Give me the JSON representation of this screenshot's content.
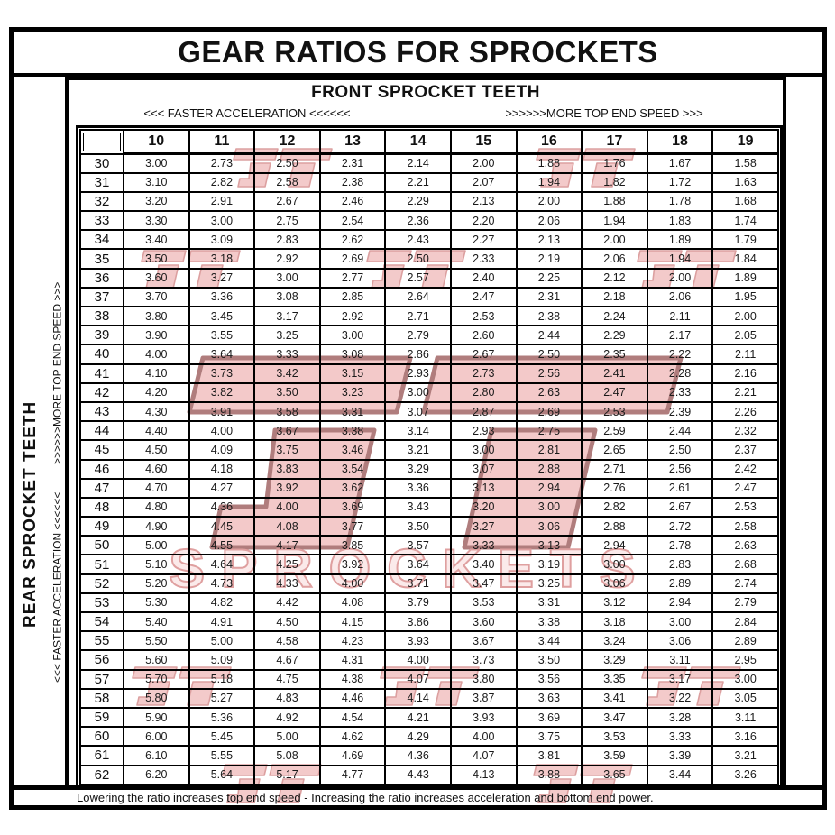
{
  "title": "GEAR RATIOS FOR SPROCKETS",
  "front_header": {
    "title": "FRONT SPROCKET TEETH",
    "faster": "<<< FASTER  ACCELERATION <<<<<<",
    "top_speed": ">>>>>>MORE TOP END SPEED >>>"
  },
  "left_labels": {
    "title": "REAR SPROCKET TEETH",
    "faster": "<<< FASTER  ACCELERATION <<<<<<",
    "top_speed": ">>>>>>MORE TOP END SPEED >>>"
  },
  "footer_note": "Lowering the ratio increases top end speed - Increasing the ratio increases acceleration and bottom end power.",
  "watermark": {
    "word": "SPROCKETS",
    "fill": "#f3caca",
    "stroke": "#dca0a0",
    "big_fill": "#f3c9c9",
    "big_stroke": "#b07d7d",
    "word_fill": "#fbeaea",
    "word_stroke": "#dfa0a0"
  },
  "border_color": "#000000",
  "chart_data": {
    "type": "table",
    "title": "GEAR RATIOS FOR SPROCKETS",
    "col_axis_label": "FRONT SPROCKET TEETH",
    "row_axis_label": "REAR SPROCKET TEETH",
    "front_teeth": [
      "10",
      "11",
      "12",
      "13",
      "14",
      "15",
      "16",
      "17",
      "18",
      "19"
    ],
    "rear_teeth": [
      "30",
      "31",
      "32",
      "33",
      "34",
      "35",
      "36",
      "37",
      "38",
      "39",
      "40",
      "41",
      "42",
      "43",
      "44",
      "45",
      "46",
      "47",
      "48",
      "49",
      "50",
      "51",
      "52",
      "53",
      "54",
      "55",
      "56",
      "57",
      "58",
      "59",
      "60",
      "61",
      "62"
    ],
    "ratios": [
      [
        "3.00",
        "2.73",
        "2.50",
        "2.31",
        "2.14",
        "2.00",
        "1.88",
        "1.76",
        "1.67",
        "1.58"
      ],
      [
        "3.10",
        "2.82",
        "2.58",
        "2.38",
        "2.21",
        "2.07",
        "1.94",
        "1.82",
        "1.72",
        "1.63"
      ],
      [
        "3.20",
        "2.91",
        "2.67",
        "2.46",
        "2.29",
        "2.13",
        "2.00",
        "1.88",
        "1.78",
        "1.68"
      ],
      [
        "3.30",
        "3.00",
        "2.75",
        "2.54",
        "2.36",
        "2.20",
        "2.06",
        "1.94",
        "1.83",
        "1.74"
      ],
      [
        "3.40",
        "3.09",
        "2.83",
        "2.62",
        "2.43",
        "2.27",
        "2.13",
        "2.00",
        "1.89",
        "1.79"
      ],
      [
        "3.50",
        "3.18",
        "2.92",
        "2.69",
        "2.50",
        "2.33",
        "2.19",
        "2.06",
        "1.94",
        "1.84"
      ],
      [
        "3.60",
        "3.27",
        "3.00",
        "2.77",
        "2.57",
        "2.40",
        "2.25",
        "2.12",
        "2.00",
        "1.89"
      ],
      [
        "3.70",
        "3.36",
        "3.08",
        "2.85",
        "2.64",
        "2.47",
        "2.31",
        "2.18",
        "2.06",
        "1.95"
      ],
      [
        "3.80",
        "3.45",
        "3.17",
        "2.92",
        "2.71",
        "2.53",
        "2.38",
        "2.24",
        "2.11",
        "2.00"
      ],
      [
        "3.90",
        "3.55",
        "3.25",
        "3.00",
        "2.79",
        "2.60",
        "2.44",
        "2.29",
        "2.17",
        "2.05"
      ],
      [
        "4.00",
        "3.64",
        "3.33",
        "3.08",
        "2.86",
        "2.67",
        "2.50",
        "2.35",
        "2.22",
        "2.11"
      ],
      [
        "4.10",
        "3.73",
        "3.42",
        "3.15",
        "2.93",
        "2.73",
        "2.56",
        "2.41",
        "2.28",
        "2.16"
      ],
      [
        "4.20",
        "3.82",
        "3.50",
        "3.23",
        "3.00",
        "2.80",
        "2.63",
        "2.47",
        "2.33",
        "2.21"
      ],
      [
        "4.30",
        "3.91",
        "3.58",
        "3.31",
        "3.07",
        "2.87",
        "2.69",
        "2.53",
        "2.39",
        "2.26"
      ],
      [
        "4.40",
        "4.00",
        "3.67",
        "3.38",
        "3.14",
        "2.93",
        "2.75",
        "2.59",
        "2.44",
        "2.32"
      ],
      [
        "4.50",
        "4.09",
        "3.75",
        "3.46",
        "3.21",
        "3.00",
        "2.81",
        "2.65",
        "2.50",
        "2.37"
      ],
      [
        "4.60",
        "4.18",
        "3.83",
        "3.54",
        "3.29",
        "3.07",
        "2.88",
        "2.71",
        "2.56",
        "2.42"
      ],
      [
        "4.70",
        "4.27",
        "3.92",
        "3.62",
        "3.36",
        "3.13",
        "2.94",
        "2.76",
        "2.61",
        "2.47"
      ],
      [
        "4.80",
        "4.36",
        "4.00",
        "3.69",
        "3.43",
        "3.20",
        "3.00",
        "2.82",
        "2.67",
        "2.53"
      ],
      [
        "4.90",
        "4.45",
        "4.08",
        "3.77",
        "3.50",
        "3.27",
        "3.06",
        "2.88",
        "2.72",
        "2.58"
      ],
      [
        "5.00",
        "4.55",
        "4.17",
        "3.85",
        "3.57",
        "3.33",
        "3.13",
        "2.94",
        "2.78",
        "2.63"
      ],
      [
        "5.10",
        "4.64",
        "4.25",
        "3.92",
        "3.64",
        "3.40",
        "3.19",
        "3.00",
        "2.83",
        "2.68"
      ],
      [
        "5.20",
        "4.73",
        "4.33",
        "4.00",
        "3.71",
        "3.47",
        "3.25",
        "3.06",
        "2.89",
        "2.74"
      ],
      [
        "5.30",
        "4.82",
        "4.42",
        "4.08",
        "3.79",
        "3.53",
        "3.31",
        "3.12",
        "2.94",
        "2.79"
      ],
      [
        "5.40",
        "4.91",
        "4.50",
        "4.15",
        "3.86",
        "3.60",
        "3.38",
        "3.18",
        "3.00",
        "2.84"
      ],
      [
        "5.50",
        "5.00",
        "4.58",
        "4.23",
        "3.93",
        "3.67",
        "3.44",
        "3.24",
        "3.06",
        "2.89"
      ],
      [
        "5.60",
        "5.09",
        "4.67",
        "4.31",
        "4.00",
        "3.73",
        "3.50",
        "3.29",
        "3.11",
        "2.95"
      ],
      [
        "5.70",
        "5.18",
        "4.75",
        "4.38",
        "4.07",
        "3.80",
        "3.56",
        "3.35",
        "3.17",
        "3.00"
      ],
      [
        "5.80",
        "5.27",
        "4.83",
        "4.46",
        "4.14",
        "3.87",
        "3.63",
        "3.41",
        "3.22",
        "3.05"
      ],
      [
        "5.90",
        "5.36",
        "4.92",
        "4.54",
        "4.21",
        "3.93",
        "3.69",
        "3.47",
        "3.28",
        "3.11"
      ],
      [
        "6.00",
        "5.45",
        "5.00",
        "4.62",
        "4.29",
        "4.00",
        "3.75",
        "3.53",
        "3.33",
        "3.16"
      ],
      [
        "6.10",
        "5.55",
        "5.08",
        "4.69",
        "4.36",
        "4.07",
        "3.81",
        "3.59",
        "3.39",
        "3.21"
      ],
      [
        "6.20",
        "5.64",
        "5.17",
        "4.77",
        "4.43",
        "4.13",
        "3.88",
        "3.65",
        "3.44",
        "3.26"
      ]
    ]
  }
}
